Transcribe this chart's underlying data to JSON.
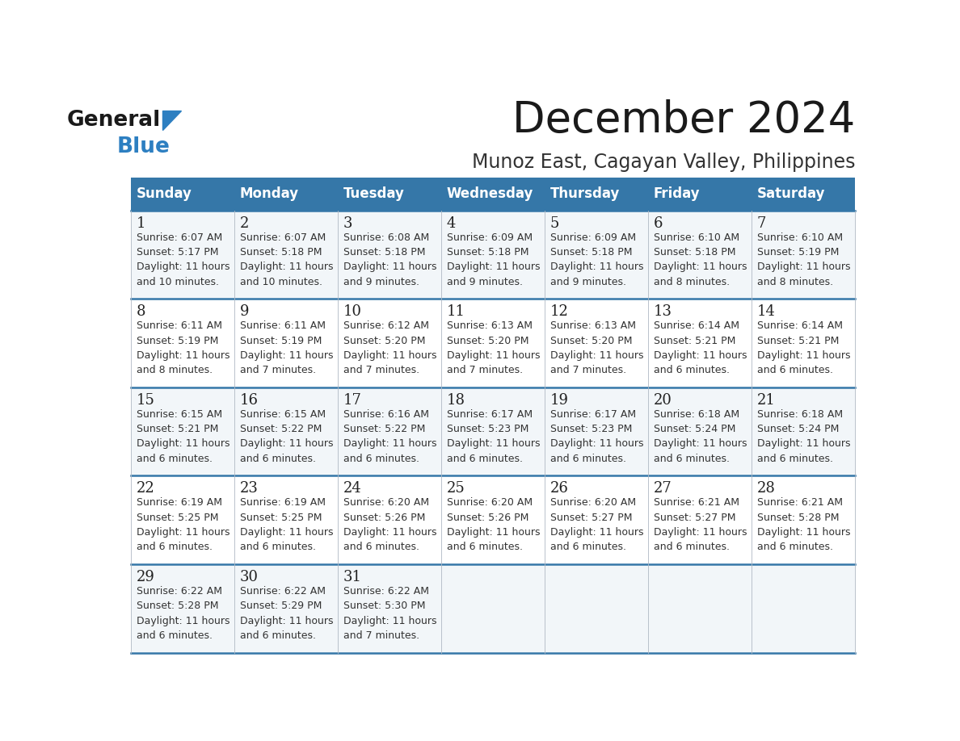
{
  "title": "December 2024",
  "subtitle": "Munoz East, Cagayan Valley, Philippines",
  "header_color": "#3577a8",
  "header_text_color": "#ffffff",
  "bg_color": "#ffffff",
  "grid_line_color": "#3577a8",
  "days_of_week": [
    "Sunday",
    "Monday",
    "Tuesday",
    "Wednesday",
    "Thursday",
    "Friday",
    "Saturday"
  ],
  "calendar_data": [
    [
      {
        "day": "1",
        "sunrise": "6:07 AM",
        "sunset": "5:17 PM",
        "daylight1": "11 hours",
        "daylight2": "and 10 minutes."
      },
      {
        "day": "2",
        "sunrise": "6:07 AM",
        "sunset": "5:18 PM",
        "daylight1": "11 hours",
        "daylight2": "and 10 minutes."
      },
      {
        "day": "3",
        "sunrise": "6:08 AM",
        "sunset": "5:18 PM",
        "daylight1": "11 hours",
        "daylight2": "and 9 minutes."
      },
      {
        "day": "4",
        "sunrise": "6:09 AM",
        "sunset": "5:18 PM",
        "daylight1": "11 hours",
        "daylight2": "and 9 minutes."
      },
      {
        "day": "5",
        "sunrise": "6:09 AM",
        "sunset": "5:18 PM",
        "daylight1": "11 hours",
        "daylight2": "and 9 minutes."
      },
      {
        "day": "6",
        "sunrise": "6:10 AM",
        "sunset": "5:18 PM",
        "daylight1": "11 hours",
        "daylight2": "and 8 minutes."
      },
      {
        "day": "7",
        "sunrise": "6:10 AM",
        "sunset": "5:19 PM",
        "daylight1": "11 hours",
        "daylight2": "and 8 minutes."
      }
    ],
    [
      {
        "day": "8",
        "sunrise": "6:11 AM",
        "sunset": "5:19 PM",
        "daylight1": "11 hours",
        "daylight2": "and 8 minutes."
      },
      {
        "day": "9",
        "sunrise": "6:11 AM",
        "sunset": "5:19 PM",
        "daylight1": "11 hours",
        "daylight2": "and 7 minutes."
      },
      {
        "day": "10",
        "sunrise": "6:12 AM",
        "sunset": "5:20 PM",
        "daylight1": "11 hours",
        "daylight2": "and 7 minutes."
      },
      {
        "day": "11",
        "sunrise": "6:13 AM",
        "sunset": "5:20 PM",
        "daylight1": "11 hours",
        "daylight2": "and 7 minutes."
      },
      {
        "day": "12",
        "sunrise": "6:13 AM",
        "sunset": "5:20 PM",
        "daylight1": "11 hours",
        "daylight2": "and 7 minutes."
      },
      {
        "day": "13",
        "sunrise": "6:14 AM",
        "sunset": "5:21 PM",
        "daylight1": "11 hours",
        "daylight2": "and 6 minutes."
      },
      {
        "day": "14",
        "sunrise": "6:14 AM",
        "sunset": "5:21 PM",
        "daylight1": "11 hours",
        "daylight2": "and 6 minutes."
      }
    ],
    [
      {
        "day": "15",
        "sunrise": "6:15 AM",
        "sunset": "5:21 PM",
        "daylight1": "11 hours",
        "daylight2": "and 6 minutes."
      },
      {
        "day": "16",
        "sunrise": "6:15 AM",
        "sunset": "5:22 PM",
        "daylight1": "11 hours",
        "daylight2": "and 6 minutes."
      },
      {
        "day": "17",
        "sunrise": "6:16 AM",
        "sunset": "5:22 PM",
        "daylight1": "11 hours",
        "daylight2": "and 6 minutes."
      },
      {
        "day": "18",
        "sunrise": "6:17 AM",
        "sunset": "5:23 PM",
        "daylight1": "11 hours",
        "daylight2": "and 6 minutes."
      },
      {
        "day": "19",
        "sunrise": "6:17 AM",
        "sunset": "5:23 PM",
        "daylight1": "11 hours",
        "daylight2": "and 6 minutes."
      },
      {
        "day": "20",
        "sunrise": "6:18 AM",
        "sunset": "5:24 PM",
        "daylight1": "11 hours",
        "daylight2": "and 6 minutes."
      },
      {
        "day": "21",
        "sunrise": "6:18 AM",
        "sunset": "5:24 PM",
        "daylight1": "11 hours",
        "daylight2": "and 6 minutes."
      }
    ],
    [
      {
        "day": "22",
        "sunrise": "6:19 AM",
        "sunset": "5:25 PM",
        "daylight1": "11 hours",
        "daylight2": "and 6 minutes."
      },
      {
        "day": "23",
        "sunrise": "6:19 AM",
        "sunset": "5:25 PM",
        "daylight1": "11 hours",
        "daylight2": "and 6 minutes."
      },
      {
        "day": "24",
        "sunrise": "6:20 AM",
        "sunset": "5:26 PM",
        "daylight1": "11 hours",
        "daylight2": "and 6 minutes."
      },
      {
        "day": "25",
        "sunrise": "6:20 AM",
        "sunset": "5:26 PM",
        "daylight1": "11 hours",
        "daylight2": "and 6 minutes."
      },
      {
        "day": "26",
        "sunrise": "6:20 AM",
        "sunset": "5:27 PM",
        "daylight1": "11 hours",
        "daylight2": "and 6 minutes."
      },
      {
        "day": "27",
        "sunrise": "6:21 AM",
        "sunset": "5:27 PM",
        "daylight1": "11 hours",
        "daylight2": "and 6 minutes."
      },
      {
        "day": "28",
        "sunrise": "6:21 AM",
        "sunset": "5:28 PM",
        "daylight1": "11 hours",
        "daylight2": "and 6 minutes."
      }
    ],
    [
      {
        "day": "29",
        "sunrise": "6:22 AM",
        "sunset": "5:28 PM",
        "daylight1": "11 hours",
        "daylight2": "and 6 minutes."
      },
      {
        "day": "30",
        "sunrise": "6:22 AM",
        "sunset": "5:29 PM",
        "daylight1": "11 hours",
        "daylight2": "and 6 minutes."
      },
      {
        "day": "31",
        "sunrise": "6:22 AM",
        "sunset": "5:30 PM",
        "daylight1": "11 hours",
        "daylight2": "and 7 minutes."
      },
      null,
      null,
      null,
      null
    ]
  ],
  "title_fontsize": 38,
  "subtitle_fontsize": 17,
  "header_fontsize": 12,
  "day_num_fontsize": 13,
  "cell_text_fontsize": 9
}
